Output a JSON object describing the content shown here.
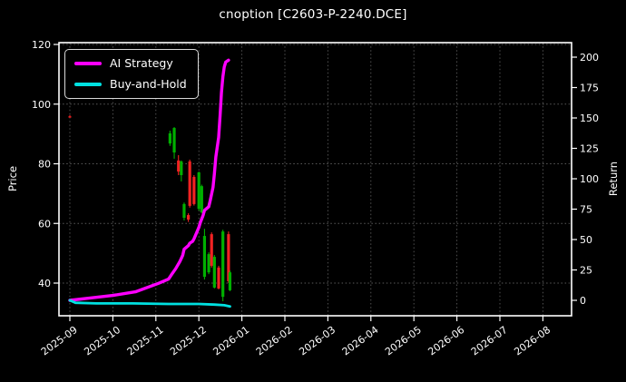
{
  "title": "cnoption [C2603-P-2240.DCE]",
  "legend": {
    "items": [
      {
        "label": "AI Strategy",
        "color": "#ff00ff"
      },
      {
        "label": "Buy-and-Hold",
        "color": "#00e0e0"
      }
    ]
  },
  "colors": {
    "figure_bg": "#000000",
    "plot_bg": "#000000",
    "spine": "#ffffff",
    "text": "#ffffff",
    "grid": "#5a5a5a",
    "candle_up": "#00b000",
    "candle_down": "#f22222",
    "ai_line": "#ff00ff",
    "buyhold_line": "#00e0e0"
  },
  "chart_data": {
    "type": "candlestick_with_lines",
    "title": "cnoption [C2603-P-2240.DCE]",
    "grid": true,
    "legend_position": "upper left",
    "x_axis": {
      "tick_labels": [
        "2025-09",
        "2025-10",
        "2025-11",
        "2025-12",
        "2026-01",
        "2026-02",
        "2026-03",
        "2026-04",
        "2026-05",
        "2026-06",
        "2026-07",
        "2026-08"
      ],
      "tick_rotation": -36
    },
    "left_axis": {
      "label": "Price",
      "ticks": [
        40,
        60,
        80,
        100,
        120
      ],
      "range": [
        28.5,
        120.6
      ]
    },
    "right_axis": {
      "label": "Return",
      "ticks": [
        0,
        25,
        50,
        75,
        100,
        125,
        150,
        175,
        200
      ],
      "range": [
        -13,
        212
      ]
    },
    "candles": {
      "axis": "left",
      "up_color": "#00b000",
      "down_color": "#f22222",
      "ohlc": [
        {
          "date": "2025-09-01",
          "o": 95.9,
          "h": 96.3,
          "l": 95.4,
          "c": 95.7
        },
        {
          "date": "2025-11-11",
          "o": 86.8,
          "h": 91.1,
          "l": 86.0,
          "c": 90.2
        },
        {
          "date": "2025-11-14",
          "o": 83.8,
          "h": 92.3,
          "l": 81.7,
          "c": 92.0
        },
        {
          "date": "2025-11-17",
          "o": 81.1,
          "h": 82.9,
          "l": 76.2,
          "c": 77.4
        },
        {
          "date": "2025-11-19",
          "o": 76.2,
          "h": 81.1,
          "l": 74.1,
          "c": 80.8
        },
        {
          "date": "2025-11-21",
          "o": 61.9,
          "h": 67.0,
          "l": 61.0,
          "c": 66.5
        },
        {
          "date": "2025-11-24",
          "o": 62.8,
          "h": 63.4,
          "l": 60.5,
          "c": 61.3
        },
        {
          "date": "2025-11-25",
          "o": 80.8,
          "h": 81.4,
          "l": 65.3,
          "c": 65.9
        },
        {
          "date": "2025-11-28",
          "o": 75.6,
          "h": 76.2,
          "l": 66.0,
          "c": 66.5
        },
        {
          "date": "2025-12-01",
          "o": 64.9,
          "h": 77.4,
          "l": 64.3,
          "c": 77.1
        },
        {
          "date": "2025-12-03",
          "o": 63.7,
          "h": 73.0,
          "l": 63.4,
          "c": 72.5
        },
        {
          "date": "2025-12-05",
          "o": 42.1,
          "h": 58.2,
          "l": 41.2,
          "c": 55.8
        },
        {
          "date": "2025-12-08",
          "o": 43.6,
          "h": 50.3,
          "l": 43.0,
          "c": 49.7
        },
        {
          "date": "2025-12-10",
          "o": 56.4,
          "h": 57.0,
          "l": 45.2,
          "c": 45.8
        },
        {
          "date": "2025-12-12",
          "o": 38.5,
          "h": 49.4,
          "l": 38.2,
          "c": 48.8
        },
        {
          "date": "2025-12-15",
          "o": 45.2,
          "h": 45.8,
          "l": 37.9,
          "c": 38.2
        },
        {
          "date": "2025-12-18",
          "o": 35.4,
          "h": 57.9,
          "l": 33.9,
          "c": 57.3
        },
        {
          "date": "2025-12-22",
          "o": 56.4,
          "h": 57.3,
          "l": 40.0,
          "c": 40.6
        },
        {
          "date": "2025-12-23",
          "o": 37.6,
          "h": 44.2,
          "l": 37.3,
          "c": 43.6
        }
      ]
    },
    "series": [
      {
        "name": "AI Strategy",
        "axis": "right",
        "color": "#ff00ff",
        "width": 3.4,
        "points": [
          [
            "2025-09-01",
            0
          ],
          [
            "2025-09-16",
            2
          ],
          [
            "2025-10-01",
            4
          ],
          [
            "2025-10-17",
            7
          ],
          [
            "2025-11-03",
            14
          ],
          [
            "2025-11-10",
            17.5
          ],
          [
            "2025-11-12",
            21
          ],
          [
            "2025-11-15",
            26
          ],
          [
            "2025-11-18",
            32
          ],
          [
            "2025-11-20",
            37
          ],
          [
            "2025-11-21",
            42
          ],
          [
            "2025-11-24",
            45
          ],
          [
            "2025-11-25",
            47
          ],
          [
            "2025-11-27",
            48.5
          ],
          [
            "2025-11-28",
            50.5
          ],
          [
            "2025-12-01",
            60
          ],
          [
            "2025-12-02",
            64
          ],
          [
            "2025-12-04",
            70
          ],
          [
            "2025-12-05",
            74
          ],
          [
            "2025-12-08",
            77
          ],
          [
            "2025-12-09",
            82
          ],
          [
            "2025-12-11",
            93
          ],
          [
            "2025-12-12",
            104
          ],
          [
            "2025-12-13",
            118
          ],
          [
            "2025-12-15",
            134
          ],
          [
            "2025-12-16",
            152
          ],
          [
            "2025-12-17",
            171
          ],
          [
            "2025-12-18",
            184
          ],
          [
            "2025-12-19",
            192
          ],
          [
            "2025-12-20",
            196
          ],
          [
            "2025-12-22",
            197.5
          ]
        ]
      },
      {
        "name": "Buy-and-Hold",
        "axis": "right",
        "color": "#00e0e0",
        "width": 2.8,
        "points": [
          [
            "2025-09-01",
            0
          ],
          [
            "2025-09-05",
            -2
          ],
          [
            "2025-09-20",
            -2.5
          ],
          [
            "2025-10-15",
            -2.5
          ],
          [
            "2025-11-10",
            -3
          ],
          [
            "2025-12-01",
            -3
          ],
          [
            "2025-12-12",
            -3.5
          ],
          [
            "2025-12-19",
            -4
          ],
          [
            "2025-12-23",
            -5
          ]
        ]
      }
    ]
  }
}
